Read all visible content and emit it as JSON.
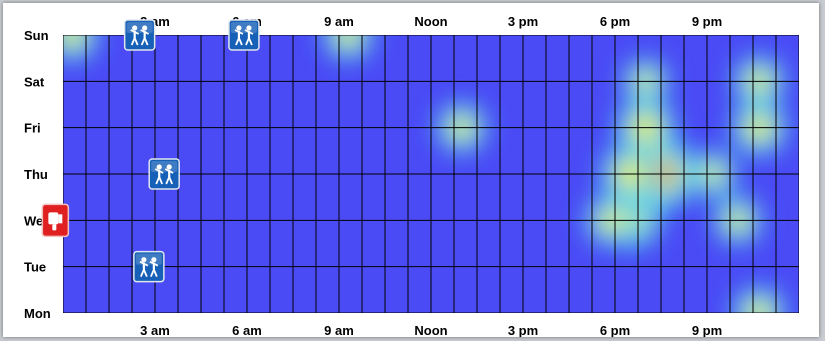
{
  "chart_data": {
    "type": "heatmap",
    "title": "",
    "xlabel": "",
    "ylabel": "",
    "x_ticks": [
      "3 am",
      "6 am",
      "9 am",
      "Noon",
      "3 pm",
      "6 pm",
      "9 pm"
    ],
    "x_tick_hours": [
      3,
      6,
      9,
      12,
      15,
      18,
      21
    ],
    "xlim": [
      0,
      24
    ],
    "days": [
      "Sun",
      "Sat",
      "Fri",
      "Thu",
      "Wed",
      "Tue",
      "Mon"
    ],
    "hotspots": [
      {
        "day": "Thu",
        "hour": 19.5,
        "intensity": 1.0
      },
      {
        "day": "Fri",
        "hour": 19.0,
        "intensity": 0.72
      },
      {
        "day": "Thu",
        "hour": 18.5,
        "intensity": 0.72
      },
      {
        "day": "Wed",
        "hour": 18.6,
        "intensity": 0.62
      },
      {
        "day": "Wed",
        "hour": 17.9,
        "intensity": 0.55
      },
      {
        "day": "Fri",
        "hour": 22.7,
        "intensity": 0.62
      },
      {
        "day": "Sat",
        "hour": 22.7,
        "intensity": 0.52
      },
      {
        "day": "Fri",
        "hour": 13.0,
        "intensity": 0.5
      },
      {
        "day": "Sun",
        "hour": 0.3,
        "intensity": 0.55
      },
      {
        "day": "Sun",
        "hour": 9.3,
        "intensity": 0.5
      },
      {
        "day": "Thu",
        "hour": 21.2,
        "intensity": 0.42
      },
      {
        "day": "Wed",
        "hour": 22.0,
        "intensity": 0.45
      },
      {
        "day": "Mon",
        "hour": 22.7,
        "intensity": 0.55
      },
      {
        "day": "Sat",
        "hour": 19.0,
        "intensity": 0.4
      }
    ],
    "markers": [
      {
        "icon": "two-people-icon",
        "day": "Sun",
        "hour": 2.5
      },
      {
        "icon": "two-people-icon",
        "day": "Sun",
        "hour": 5.9
      },
      {
        "icon": "two-people-icon",
        "day": "Thu",
        "hour": 3.3
      },
      {
        "icon": "two-people-icon",
        "day": "Tue",
        "hour": 2.8
      },
      {
        "icon": "thumbs-down-icon",
        "day": "Wed",
        "hour": -0.25
      }
    ],
    "colors": {
      "background": "#4b4bf5",
      "grid": "#000000",
      "heat_low": "#3fd0f0",
      "heat_mid": "#eaf030",
      "heat_high": "#e02020",
      "marker_blue": "#1660b8",
      "marker_red": "#e02020"
    },
    "grid": true
  }
}
